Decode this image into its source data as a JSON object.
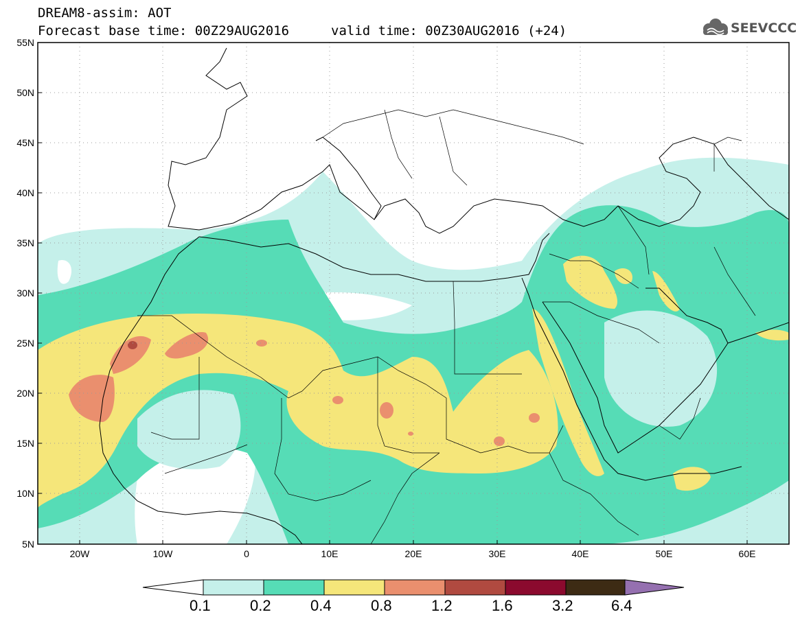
{
  "header": {
    "line1": "DREAM8-assim: AOT",
    "base_time": "Forecast base time: 00Z29AUG2016",
    "valid_time": "valid time: 00Z30AUG2016 (+24)",
    "logo_text": "SEEVCCC"
  },
  "map": {
    "lat_labels": [
      "55N",
      "50N",
      "45N",
      "40N",
      "35N",
      "30N",
      "25N",
      "20N",
      "15N",
      "10N",
      "5N"
    ],
    "lon_labels": [
      "20W",
      "10W",
      "0",
      "10E",
      "20E",
      "30E",
      "40E",
      "50E",
      "60E"
    ]
  },
  "colorbar": {
    "colors": [
      "#c5f0ea",
      "#56dcb6",
      "#f5e67a",
      "#ea8f6e",
      "#b04a40",
      "#8b0a2e",
      "#3d2b14"
    ],
    "under_color": "#ffffff",
    "over_color": "#9570b0",
    "labels": [
      "0.1",
      "0.2",
      "0.4",
      "0.8",
      "1.2",
      "1.6",
      "3.2",
      "6.4"
    ]
  }
}
